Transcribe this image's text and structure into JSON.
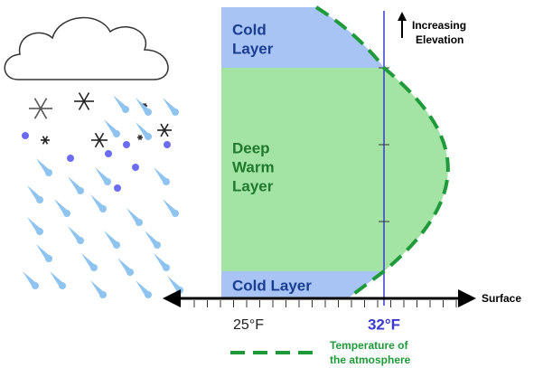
{
  "nodes": [
    {
      "label": [
        "Cold",
        "Layer"
      ]
    },
    {
      "label": [
        "Deep",
        "Warm",
        "Layer"
      ]
    },
    {
      "label": [
        "Cold Layer"
      ]
    }
  ],
  "elevation_label": [
    "Increasing",
    "Elevation"
  ],
  "surface_label": "Surface",
  "temperatures": [
    "25°F",
    "32°F"
  ],
  "legend": [
    "Temperature of",
    "the atmosphere"
  ]
}
